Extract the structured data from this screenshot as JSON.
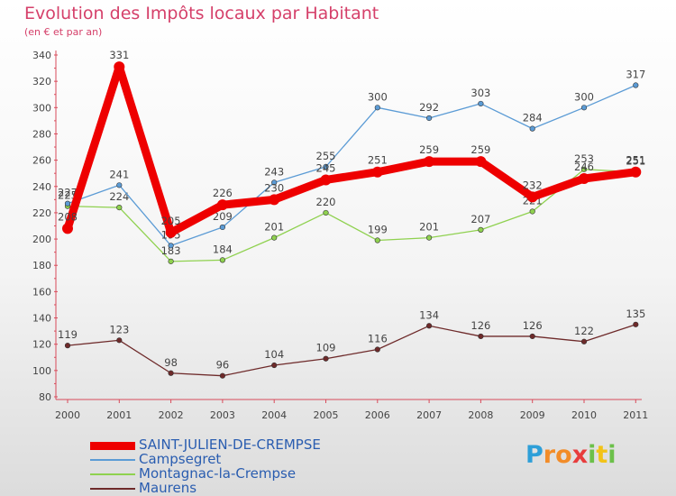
{
  "chart_data": {
    "type": "line",
    "title": "Evolution des Impôts locaux par Habitant",
    "subtitle": "(en € et par an)",
    "categories": [
      "2000",
      "2001",
      "2002",
      "2003",
      "2004",
      "2005",
      "2006",
      "2007",
      "2008",
      "2009",
      "2010",
      "2011"
    ],
    "ylim": [
      80,
      340
    ],
    "yticks": [
      80,
      100,
      120,
      140,
      160,
      180,
      200,
      220,
      240,
      260,
      280,
      300,
      320,
      340
    ],
    "grid": false,
    "legend_position": "bottom-left",
    "series": [
      {
        "name": "SAINT-JULIEN-DE-CREMPSE",
        "color": "#ee0000",
        "values": [
          208,
          331,
          205,
          226,
          230,
          245,
          251,
          259,
          259,
          232,
          246,
          251
        ]
      },
      {
        "name": "Campsegret",
        "color": "#5b9bd5",
        "values": [
          227,
          241,
          195,
          209,
          243,
          255,
          300,
          292,
          303,
          284,
          300,
          317
        ]
      },
      {
        "name": "Montagnac-la-Crempse",
        "color": "#8fd14f",
        "values": [
          225,
          224,
          183,
          184,
          201,
          220,
          199,
          201,
          207,
          221,
          253,
          251
        ]
      },
      {
        "name": "Maurens",
        "color": "#6e2a2a",
        "values": [
          119,
          123,
          98,
          96,
          104,
          109,
          116,
          134,
          126,
          126,
          122,
          135
        ]
      }
    ]
  },
  "logo": {
    "letters": [
      "P",
      "r",
      "o",
      "x",
      "i",
      "t",
      "i"
    ],
    "colors": [
      "#2e9fd8",
      "#f28c28",
      "#f28c28",
      "#e83c3c",
      "#6cc04a",
      "#f2c318",
      "#6cc04a"
    ]
  }
}
